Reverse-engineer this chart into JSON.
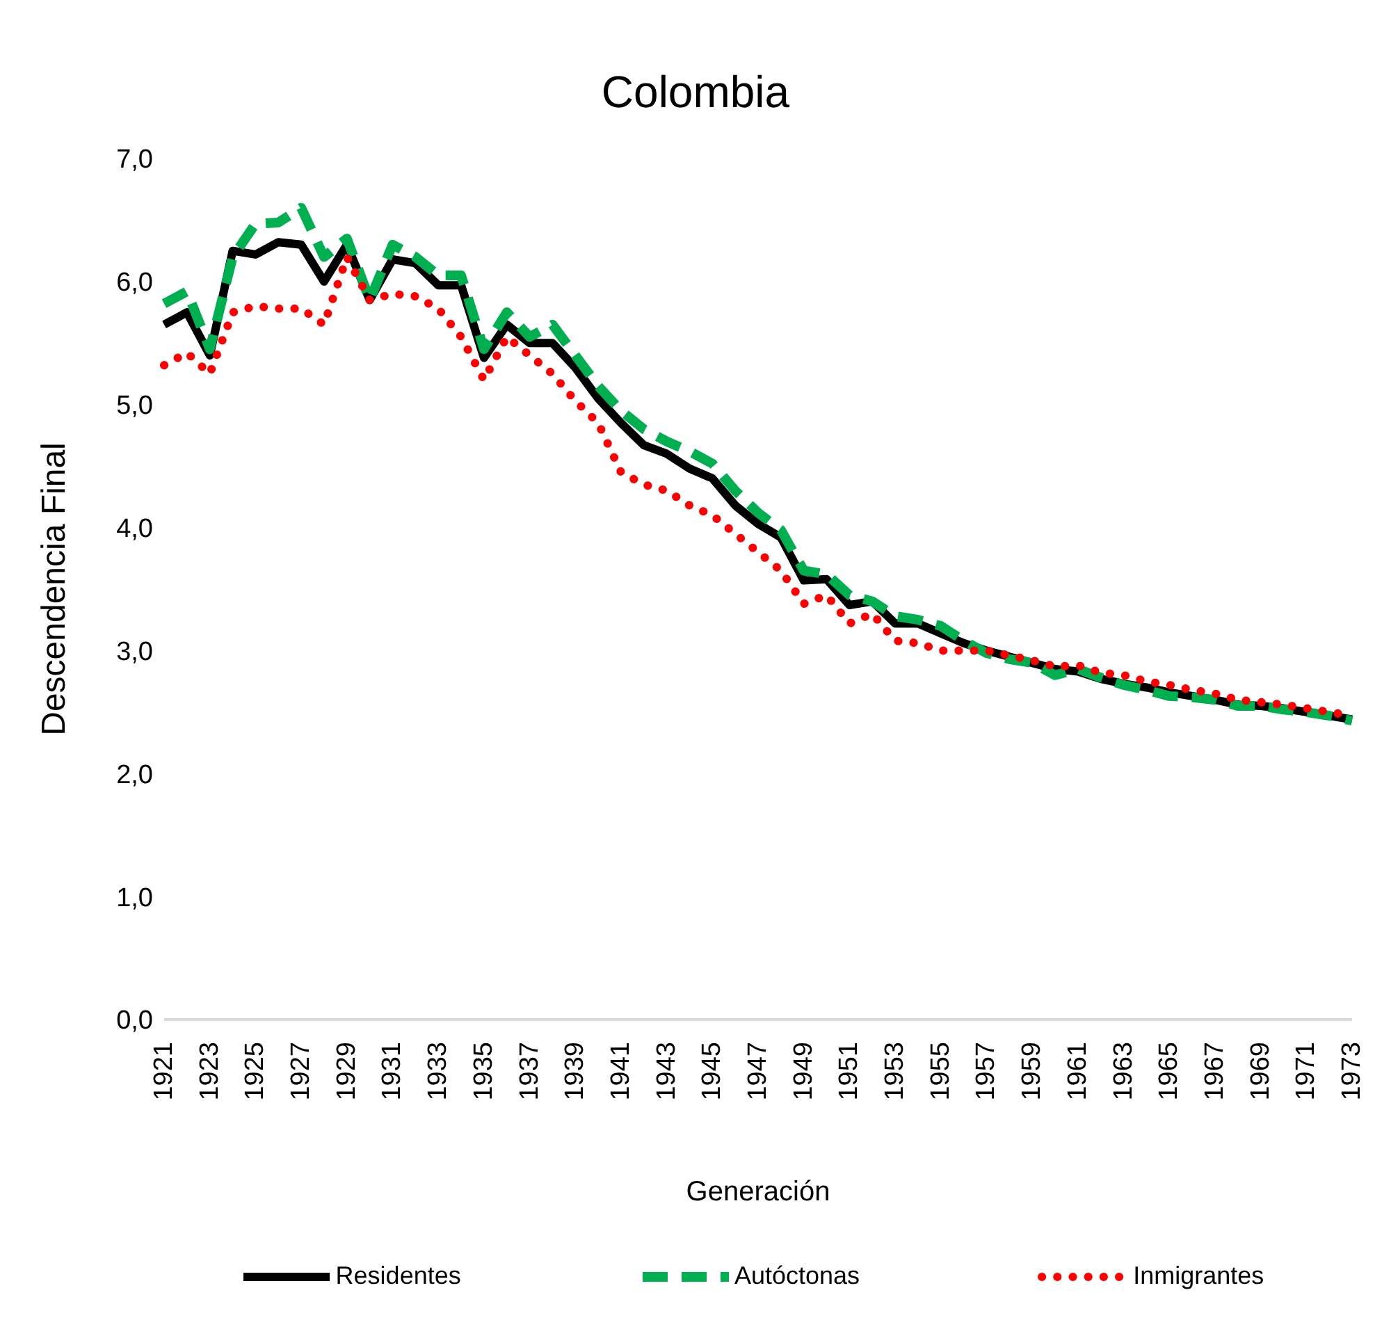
{
  "chart_data": {
    "type": "line",
    "title": "Colombia",
    "xlabel": "Generación",
    "ylabel": "Descendencia Final",
    "categories": [
      "1921",
      null,
      "1923",
      null,
      "1925",
      null,
      "1927",
      null,
      "1929",
      null,
      "1931",
      null,
      "1933",
      null,
      "1935",
      null,
      "1937",
      null,
      "1939",
      null,
      "1941",
      null,
      "1943",
      null,
      "1945",
      null,
      "1947",
      null,
      "1949",
      null,
      "1951",
      null,
      "1953",
      null,
      "1955",
      null,
      "1957",
      null,
      "1959",
      null,
      "1961",
      null,
      "1963",
      null,
      "1965",
      null,
      "1967",
      null,
      "1969",
      null,
      "1971",
      null,
      "1973"
    ],
    "series": [
      {
        "name": "Residentes",
        "color": "#000000",
        "line_style": "solid",
        "values": [
          5.65,
          5.75,
          5.4,
          6.25,
          6.22,
          6.32,
          6.3,
          6.0,
          6.3,
          5.85,
          6.18,
          6.15,
          5.97,
          5.97,
          5.38,
          5.65,
          5.5,
          5.5,
          5.3,
          5.05,
          4.85,
          4.67,
          4.6,
          4.48,
          4.4,
          4.18,
          4.03,
          3.92,
          3.57,
          3.58,
          3.37,
          3.4,
          3.22,
          3.22,
          3.14,
          3.06,
          3.0,
          2.95,
          2.9,
          2.85,
          2.83,
          2.77,
          2.73,
          2.7,
          2.66,
          2.63,
          2.6,
          2.56,
          2.55,
          2.53,
          2.5,
          2.47,
          2.44
        ]
      },
      {
        "name": "Autóctonas",
        "color": "#00b050",
        "line_style": "dashed",
        "values": [
          5.82,
          5.92,
          5.45,
          6.2,
          6.47,
          6.48,
          6.6,
          6.2,
          6.35,
          5.85,
          6.3,
          6.2,
          6.05,
          6.05,
          5.45,
          5.75,
          5.55,
          5.65,
          5.4,
          5.15,
          4.95,
          4.8,
          4.7,
          4.62,
          4.52,
          4.3,
          4.12,
          3.98,
          3.65,
          3.62,
          3.45,
          3.4,
          3.28,
          3.25,
          3.2,
          3.08,
          2.98,
          2.93,
          2.9,
          2.8,
          2.85,
          2.78,
          2.72,
          2.68,
          2.63,
          2.62,
          2.6,
          2.55,
          2.55,
          2.52,
          2.5,
          2.47,
          2.43
        ]
      },
      {
        "name": "Inmigrantes",
        "color": "#ff0000",
        "line_style": "dotted",
        "values": [
          5.32,
          5.42,
          5.25,
          5.75,
          5.8,
          5.78,
          5.78,
          5.65,
          6.2,
          5.85,
          5.9,
          5.88,
          5.78,
          5.55,
          5.2,
          5.55,
          5.4,
          5.25,
          5.03,
          4.85,
          4.45,
          4.35,
          4.3,
          4.18,
          4.1,
          3.95,
          3.8,
          3.65,
          3.38,
          3.45,
          3.22,
          3.3,
          3.08,
          3.06,
          3.0,
          3.0,
          3.0,
          2.96,
          2.92,
          2.87,
          2.88,
          2.82,
          2.8,
          2.75,
          2.72,
          2.68,
          2.65,
          2.6,
          2.58,
          2.56,
          2.53,
          2.5,
          2.47
        ]
      }
    ],
    "ylim": [
      0,
      7
    ],
    "yticks": [
      {
        "value": 0,
        "label": "0,0"
      },
      {
        "value": 1,
        "label": "1,0"
      },
      {
        "value": 2,
        "label": "2,0"
      },
      {
        "value": 3,
        "label": "3,0"
      },
      {
        "value": 4,
        "label": "4,0"
      },
      {
        "value": 5,
        "label": "5,0"
      },
      {
        "value": 6,
        "label": "6,0"
      },
      {
        "value": 7,
        "label": "7,0"
      }
    ],
    "grid": false,
    "legend": "bottom",
    "marker": "none"
  }
}
